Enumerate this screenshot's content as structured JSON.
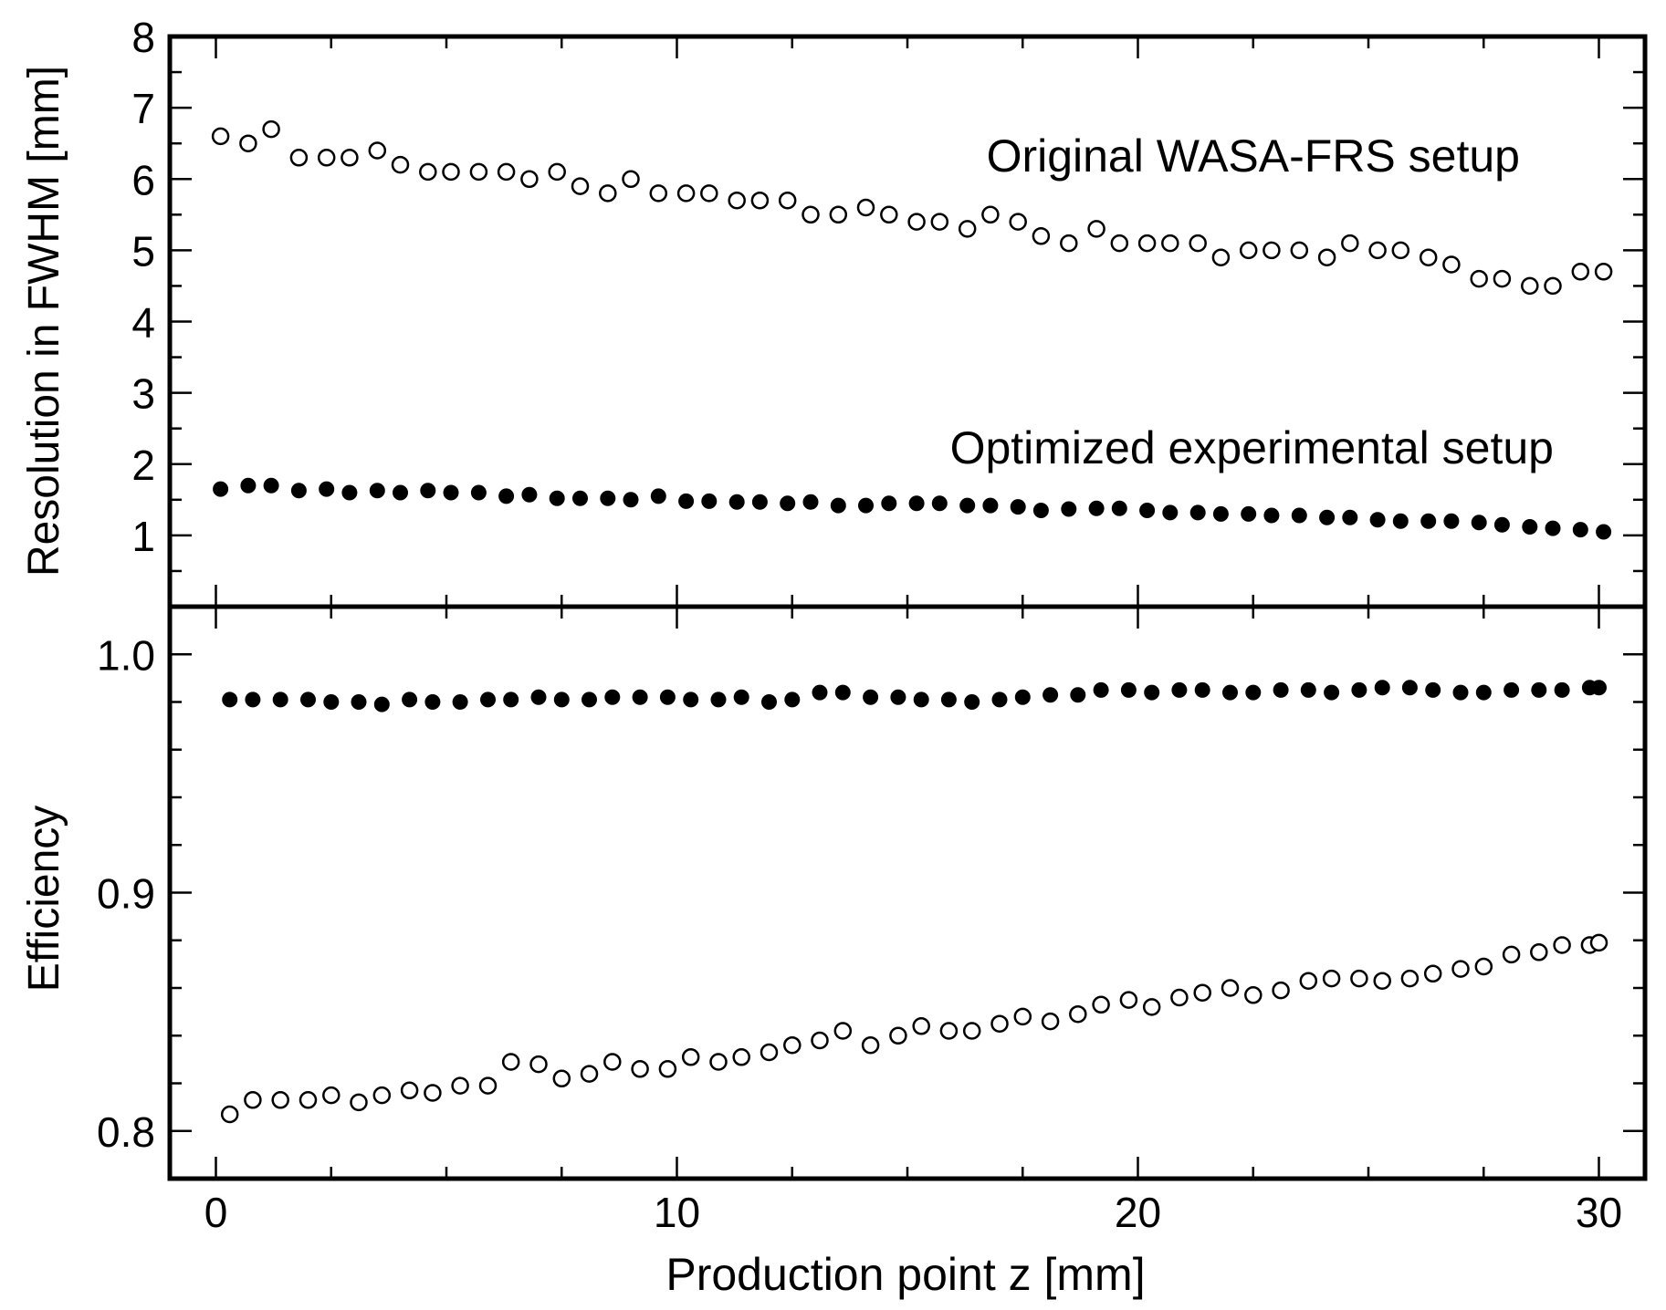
{
  "chart_data": [
    {
      "type": "scatter",
      "panel": "top",
      "ylabel": "Resolution in FWHM [mm]",
      "ylim": [
        0,
        8
      ],
      "yticks": [
        {
          "value": 1,
          "label": "1"
        },
        {
          "value": 2,
          "label": "2"
        },
        {
          "value": 3,
          "label": "3"
        },
        {
          "value": 4,
          "label": "4"
        },
        {
          "value": 5,
          "label": "5"
        },
        {
          "value": 6,
          "label": "6"
        },
        {
          "value": 7,
          "label": "7"
        },
        {
          "value": 8,
          "label": "8"
        }
      ],
      "grid": false,
      "annotations": [
        {
          "text": "Original WASA-FRS setup"
        },
        {
          "text": "Optimized experimental setup"
        }
      ],
      "series": [
        {
          "marker": "open-circle",
          "x": [
            0.1,
            0.7,
            1.2,
            1.8,
            2.4,
            2.9,
            3.5,
            4.0,
            4.6,
            5.1,
            5.7,
            6.3,
            6.8,
            7.4,
            7.9,
            8.5,
            9.0,
            9.6,
            10.2,
            10.7,
            11.3,
            11.8,
            12.4,
            12.9,
            13.5,
            14.1,
            14.6,
            15.2,
            15.7,
            16.3,
            16.8,
            17.4,
            17.9,
            18.5,
            19.1,
            19.6,
            20.2,
            20.7,
            21.3,
            21.8,
            22.4,
            22.9,
            23.5,
            24.1,
            24.6,
            25.2,
            25.7,
            26.3,
            26.8,
            27.4,
            27.9,
            28.5,
            29.0,
            29.6,
            30.1
          ],
          "y": [
            6.6,
            6.5,
            6.7,
            6.3,
            6.3,
            6.3,
            6.4,
            6.2,
            6.1,
            6.1,
            6.1,
            6.1,
            6.0,
            6.1,
            5.9,
            5.8,
            6.0,
            5.8,
            5.8,
            5.8,
            5.7,
            5.7,
            5.7,
            5.5,
            5.5,
            5.6,
            5.5,
            5.4,
            5.4,
            5.3,
            5.5,
            5.4,
            5.2,
            5.1,
            5.3,
            5.1,
            5.1,
            5.1,
            5.1,
            4.9,
            5.0,
            5.0,
            5.0,
            4.9,
            5.1,
            5.0,
            5.0,
            4.9,
            4.8,
            4.6,
            4.6,
            4.5,
            4.5,
            4.7,
            4.7
          ]
        },
        {
          "marker": "filled-circle",
          "x": [
            0.1,
            0.7,
            1.2,
            1.8,
            2.4,
            2.9,
            3.5,
            4.0,
            4.6,
            5.1,
            5.7,
            6.3,
            6.8,
            7.4,
            7.9,
            8.5,
            9.0,
            9.6,
            10.2,
            10.7,
            11.3,
            11.8,
            12.4,
            12.9,
            13.5,
            14.1,
            14.6,
            15.2,
            15.7,
            16.3,
            16.8,
            17.4,
            17.9,
            18.5,
            19.1,
            19.6,
            20.2,
            20.7,
            21.3,
            21.8,
            22.4,
            22.9,
            23.5,
            24.1,
            24.6,
            25.2,
            25.7,
            26.3,
            26.8,
            27.4,
            27.9,
            28.5,
            29.0,
            29.6,
            30.1
          ],
          "y": [
            1.65,
            1.7,
            1.7,
            1.63,
            1.65,
            1.6,
            1.63,
            1.6,
            1.63,
            1.6,
            1.6,
            1.55,
            1.57,
            1.52,
            1.52,
            1.52,
            1.5,
            1.55,
            1.48,
            1.48,
            1.47,
            1.47,
            1.45,
            1.47,
            1.42,
            1.42,
            1.45,
            1.45,
            1.45,
            1.42,
            1.42,
            1.4,
            1.35,
            1.37,
            1.38,
            1.38,
            1.35,
            1.32,
            1.32,
            1.3,
            1.3,
            1.28,
            1.28,
            1.25,
            1.25,
            1.22,
            1.2,
            1.2,
            1.2,
            1.18,
            1.15,
            1.12,
            1.1,
            1.08,
            1.05
          ]
        }
      ]
    },
    {
      "type": "scatter",
      "panel": "bottom",
      "xlabel": "Production point z [mm]",
      "ylabel": "Efficiency",
      "xlim": [
        -1,
        31
      ],
      "ylim": [
        0.78,
        1.02
      ],
      "xticks": [
        {
          "value": 0,
          "label": "0"
        },
        {
          "value": 10,
          "label": "10"
        },
        {
          "value": 20,
          "label": "20"
        },
        {
          "value": 30,
          "label": "30"
        }
      ],
      "yticks": [
        {
          "value": 0.8,
          "label": "0.8"
        },
        {
          "value": 0.9,
          "label": "0.9"
        },
        {
          "value": 1.0,
          "label": "1.0"
        }
      ],
      "grid": false,
      "series": [
        {
          "marker": "filled-circle",
          "x": [
            0.3,
            0.8,
            1.4,
            2.0,
            2.5,
            3.1,
            3.6,
            4.2,
            4.7,
            5.3,
            5.9,
            6.4,
            7.0,
            7.5,
            8.1,
            8.6,
            9.2,
            9.8,
            10.3,
            10.9,
            11.4,
            12.0,
            12.5,
            13.1,
            13.6,
            14.2,
            14.8,
            15.3,
            15.9,
            16.4,
            17.0,
            17.5,
            18.1,
            18.7,
            19.2,
            19.8,
            20.3,
            20.9,
            21.4,
            22.0,
            22.5,
            23.1,
            23.7,
            24.2,
            24.8,
            25.3,
            25.9,
            26.4,
            27.0,
            27.5,
            28.1,
            28.7,
            29.2,
            29.8,
            30.0
          ],
          "y": [
            0.981,
            0.981,
            0.981,
            0.981,
            0.98,
            0.98,
            0.979,
            0.981,
            0.98,
            0.98,
            0.981,
            0.981,
            0.982,
            0.981,
            0.981,
            0.982,
            0.982,
            0.982,
            0.981,
            0.981,
            0.982,
            0.98,
            0.981,
            0.984,
            0.984,
            0.982,
            0.982,
            0.981,
            0.981,
            0.98,
            0.981,
            0.982,
            0.983,
            0.983,
            0.985,
            0.985,
            0.984,
            0.985,
            0.985,
            0.984,
            0.984,
            0.985,
            0.985,
            0.984,
            0.985,
            0.986,
            0.986,
            0.985,
            0.984,
            0.984,
            0.985,
            0.985,
            0.985,
            0.986,
            0.986
          ]
        },
        {
          "marker": "open-circle",
          "x": [
            0.3,
            0.8,
            1.4,
            2.0,
            2.5,
            3.1,
            3.6,
            4.2,
            4.7,
            5.3,
            5.9,
            6.4,
            7.0,
            7.5,
            8.1,
            8.6,
            9.2,
            9.8,
            10.3,
            10.9,
            11.4,
            12.0,
            12.5,
            13.1,
            13.6,
            14.2,
            14.8,
            15.3,
            15.9,
            16.4,
            17.0,
            17.5,
            18.1,
            18.7,
            19.2,
            19.8,
            20.3,
            20.9,
            21.4,
            22.0,
            22.5,
            23.1,
            23.7,
            24.2,
            24.8,
            25.3,
            25.9,
            26.4,
            27.0,
            27.5,
            28.1,
            28.7,
            29.2,
            29.8,
            30.0
          ],
          "y": [
            0.807,
            0.813,
            0.813,
            0.813,
            0.815,
            0.812,
            0.815,
            0.817,
            0.816,
            0.819,
            0.819,
            0.829,
            0.828,
            0.822,
            0.824,
            0.829,
            0.826,
            0.826,
            0.831,
            0.829,
            0.831,
            0.833,
            0.836,
            0.838,
            0.842,
            0.836,
            0.84,
            0.844,
            0.842,
            0.842,
            0.845,
            0.848,
            0.846,
            0.849,
            0.853,
            0.855,
            0.852,
            0.856,
            0.858,
            0.86,
            0.857,
            0.859,
            0.863,
            0.864,
            0.864,
            0.863,
            0.864,
            0.866,
            0.868,
            0.869,
            0.874,
            0.875,
            0.878,
            0.878,
            0.879
          ]
        }
      ]
    }
  ]
}
